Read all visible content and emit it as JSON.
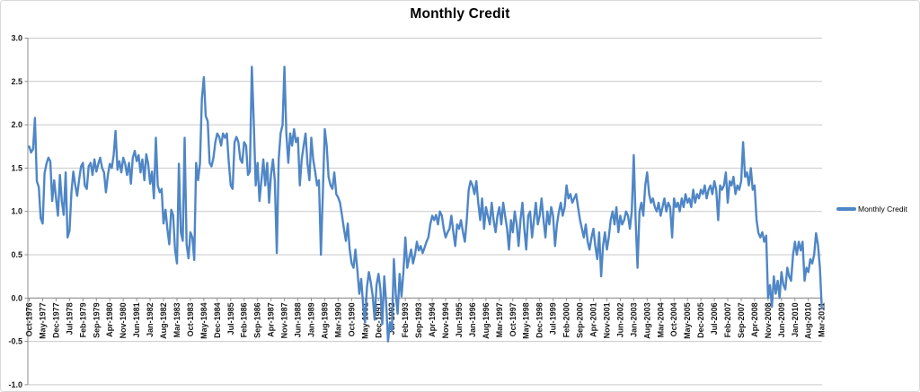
{
  "title": "Monthly Credit",
  "legend": {
    "label": "Monthly Credit"
  },
  "colors": {
    "series_line": "#4F86C6",
    "gridline": "#C9C9C9",
    "axis_line": "#8E8E8E",
    "tick_label": "#1A1A1A",
    "frame_border": "#D9D9D9",
    "background": "#FFFFFF"
  },
  "chart_data": {
    "type": "line",
    "title": "Monthly Credit",
    "xlabel": "",
    "ylabel": "",
    "ylim": [
      -1.0,
      3.0
    ],
    "ytick_step": 0.5,
    "y_tick_labels": [
      "3.0",
      "2.5",
      "2.0",
      "1.5",
      "1.0",
      "0.5",
      "0.0",
      "-0.5",
      "-1.0"
    ],
    "grid": true,
    "legend_position": "right",
    "x_unit": "month",
    "x_range": [
      "Oct-1976",
      "Mar-2011"
    ],
    "n_points": 414,
    "x_tick_interval_months": 7,
    "x_tick_labels": [
      "Oct-1976",
      "May-1977",
      "Dec-1977",
      "Jul-1978",
      "Feb-1979",
      "Sep-1979",
      "Apr-1980",
      "Nov-1980",
      "Jun-1981",
      "Jan-1982",
      "Aug-1982",
      "Mar-1983",
      "Oct-1983",
      "May-1984",
      "Dec-1984",
      "Jul-1985",
      "Feb-1986",
      "Sep-1986",
      "Apr-1987",
      "Nov-1987",
      "Jun-1988",
      "Jan-1989",
      "Aug-1989",
      "Mar-1990",
      "Oct-1990",
      "May-1991",
      "Dec-1991",
      "Jul-1992",
      "Feb-1993",
      "Sep-1993",
      "Apr-1994",
      "Nov-1994",
      "Jun-1995",
      "Jan-1996",
      "Aug-1996",
      "Mar-1997",
      "Oct-1997",
      "May-1998",
      "Dec-1998",
      "Jul-1999",
      "Feb-2000",
      "Sep-2000",
      "Apr-2001",
      "Nov-2001",
      "Jun-2002",
      "Jan-2003",
      "Aug-2003",
      "Mar-2004",
      "Oct-2004",
      "May-2005",
      "Dec-2005",
      "Jul-2006",
      "Feb-2007",
      "Sep-2007",
      "Apr-2008",
      "Nov-2008",
      "Jun-2009",
      "Jan-2010",
      "Aug-2010",
      "Mar-2011"
    ],
    "series": [
      {
        "name": "Monthly Credit",
        "color": "#4F86C6",
        "values": [
          1.75,
          1.68,
          1.72,
          2.08,
          1.35,
          1.28,
          0.92,
          0.86,
          1.44,
          1.55,
          1.62,
          1.58,
          1.12,
          1.36,
          1.15,
          0.95,
          1.42,
          1.12,
          0.96,
          1.45,
          0.7,
          0.78,
          1.22,
          1.46,
          1.3,
          1.18,
          1.36,
          1.52,
          1.56,
          1.3,
          1.26,
          1.52,
          1.56,
          1.42,
          1.6,
          1.46,
          1.55,
          1.62,
          1.5,
          1.45,
          1.22,
          1.42,
          1.55,
          1.5,
          1.65,
          1.93,
          1.48,
          1.58,
          1.45,
          1.62,
          1.55,
          1.42,
          1.56,
          1.32,
          1.62,
          1.7,
          1.58,
          1.65,
          1.45,
          1.6,
          1.36,
          1.66,
          1.55,
          1.32,
          1.46,
          1.15,
          1.85,
          1.3,
          1.22,
          1.26,
          0.86,
          1.02,
          0.8,
          0.62,
          1.02,
          0.96,
          0.56,
          0.4,
          1.55,
          0.76,
          0.66,
          1.85,
          0.62,
          0.46,
          0.76,
          0.7,
          0.44,
          1.56,
          1.36,
          1.56,
          2.3,
          2.55,
          2.1,
          2.04,
          1.56,
          1.52,
          1.62,
          1.8,
          1.9,
          1.86,
          1.76,
          1.9,
          1.85,
          1.9,
          1.56,
          1.3,
          1.26,
          1.8,
          1.86,
          1.8,
          1.6,
          1.56,
          1.8,
          1.76,
          1.42,
          1.46,
          2.67,
          2.05,
          1.3,
          1.56,
          1.12,
          1.36,
          1.6,
          1.3,
          1.56,
          1.1,
          1.42,
          1.6,
          1.35,
          0.52,
          1.6,
          1.9,
          2.0,
          2.67,
          1.9,
          1.56,
          1.9,
          1.76,
          1.95,
          1.8,
          1.85,
          1.3,
          1.6,
          1.76,
          1.9,
          1.56,
          1.36,
          1.85,
          1.6,
          1.46,
          1.3,
          1.36,
          0.5,
          1.2,
          1.95,
          1.76,
          1.4,
          1.3,
          1.26,
          1.45,
          1.2,
          1.16,
          1.1,
          0.95,
          0.8,
          0.66,
          0.86,
          0.56,
          0.4,
          0.35,
          0.56,
          0.32,
          0.05,
          0.22,
          -0.08,
          -0.28,
          0.12,
          0.3,
          0.18,
          0.02,
          -0.25,
          0.15,
          0.28,
          0.1,
          -0.3,
          0.25,
          -0.05,
          -0.5,
          -0.28,
          -0.38,
          0.45,
          0.05,
          -0.18,
          0.28,
          0.02,
          0.3,
          0.7,
          0.35,
          0.46,
          0.56,
          0.4,
          0.5,
          0.65,
          0.55,
          0.6,
          0.52,
          0.58,
          0.65,
          0.7,
          0.85,
          0.95,
          0.9,
          0.96,
          0.85,
          1.0,
          0.95,
          0.8,
          0.7,
          0.76,
          0.8,
          0.95,
          0.76,
          0.6,
          0.85,
          0.8,
          0.9,
          0.76,
          0.65,
          0.9,
          1.25,
          1.35,
          1.3,
          1.2,
          1.35,
          1.1,
          0.9,
          1.15,
          0.8,
          1.05,
          0.95,
          0.85,
          1.1,
          0.9,
          0.76,
          0.95,
          1.05,
          0.85,
          1.1,
          0.95,
          0.8,
          0.56,
          0.9,
          0.76,
          1.0,
          0.85,
          0.6,
          0.9,
          1.1,
          0.8,
          0.56,
          0.95,
          1.0,
          0.7,
          0.9,
          1.1,
          0.85,
          0.95,
          1.15,
          0.9,
          0.7,
          1.0,
          0.85,
          1.05,
          0.95,
          0.6,
          0.85,
          1.0,
          1.1,
          0.95,
          1.05,
          1.3,
          1.15,
          1.2,
          1.1,
          1.15,
          1.2,
          1.05,
          0.9,
          0.8,
          0.7,
          0.85,
          0.65,
          0.56,
          0.7,
          0.8,
          0.6,
          0.45,
          0.76,
          0.25,
          0.6,
          0.76,
          0.56,
          0.7,
          0.9,
          1.0,
          0.85,
          1.05,
          0.76,
          0.95,
          0.85,
          0.9,
          1.0,
          0.95,
          0.8,
          1.0,
          1.65,
          0.9,
          0.35,
          1.0,
          1.1,
          0.95,
          1.3,
          1.45,
          1.2,
          1.1,
          1.15,
          1.05,
          1.0,
          1.1,
          0.95,
          1.05,
          1.15,
          1.0,
          1.1,
          1.05,
          0.7,
          1.15,
          1.05,
          1.1,
          1.0,
          1.15,
          1.05,
          1.2,
          1.1,
          1.15,
          1.05,
          1.25,
          1.1,
          1.2,
          1.15,
          1.25,
          1.2,
          1.3,
          1.15,
          1.25,
          1.3,
          1.2,
          1.35,
          1.25,
          0.9,
          1.3,
          1.25,
          1.3,
          1.45,
          1.1,
          1.35,
          1.3,
          1.4,
          1.2,
          1.3,
          1.25,
          1.35,
          1.8,
          1.4,
          1.45,
          1.3,
          1.5,
          1.25,
          1.3,
          0.9,
          0.75,
          0.7,
          0.76,
          0.65,
          0.72,
          0.0,
          0.15,
          -0.1,
          0.25,
          0.05,
          0.2,
          0.0,
          0.3,
          0.15,
          0.1,
          0.35,
          0.25,
          0.2,
          0.5,
          0.65,
          0.5,
          0.65,
          0.55,
          0.65,
          0.2,
          0.35,
          0.3,
          0.45,
          0.4,
          0.5,
          0.75,
          0.62,
          0.35,
          -0.12
        ]
      }
    ]
  }
}
